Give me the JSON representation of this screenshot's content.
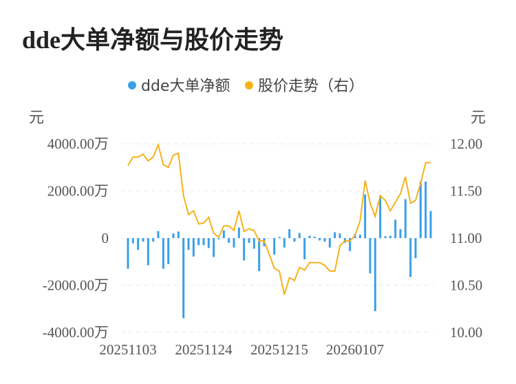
{
  "chart_data": {
    "type": "bar+line",
    "title": "dde大单净额与股价走势",
    "legend": [
      "dde大单净额",
      "股价走势（右）"
    ],
    "colors": {
      "bar": "#3a9fe8",
      "line": "#f3b21a"
    },
    "left_unit": "元",
    "right_unit": "元",
    "left_ticks": [
      "4000.00万",
      "2000.00万",
      "0",
      "-2000.00万",
      "-4000.00万"
    ],
    "right_ticks": [
      "12.00",
      "11.50",
      "11.00",
      "10.50",
      "10.00"
    ],
    "y_left_range": [
      -4000,
      4000
    ],
    "y_right_range": [
      10.0,
      12.0
    ],
    "x_tick_labels": [
      "20251103",
      "20251124",
      "20251215",
      "20260107"
    ],
    "x_tick_index": [
      0,
      15,
      30,
      45
    ],
    "series": [
      {
        "name": "dde大单净额",
        "axis": "left",
        "unit": "万",
        "values": [
          -1300,
          -220,
          -500,
          -150,
          -1150,
          -150,
          300,
          -1300,
          -1100,
          200,
          280,
          -3400,
          -500,
          -780,
          -300,
          -300,
          -420,
          -800,
          -50,
          330,
          -200,
          -400,
          450,
          -950,
          -200,
          -450,
          -1400,
          -350,
          -10,
          -700,
          50,
          -400,
          380,
          -150,
          220,
          -900,
          100,
          60,
          -100,
          -150,
          -400,
          250,
          200,
          -200,
          -550,
          180,
          150,
          1850,
          -1500,
          -3100,
          1800,
          80,
          100,
          780,
          380,
          1650,
          -1650,
          -850,
          2400,
          2400,
          1150
        ],
        "ser_index_note": ""
      },
      {
        "name": "股价走势（右）",
        "axis": "right",
        "values": [
          11.77,
          11.86,
          11.86,
          11.89,
          11.82,
          11.86,
          11.99,
          11.78,
          11.75,
          11.88,
          11.9,
          11.45,
          11.25,
          11.29,
          11.15,
          11.16,
          11.22,
          11.05,
          11.01,
          11.13,
          11.13,
          11.08,
          11.29,
          11.07,
          11.1,
          11.08,
          10.97,
          10.97,
          10.83,
          10.68,
          10.65,
          10.4,
          10.58,
          10.55,
          10.69,
          10.66,
          10.74,
          10.74,
          10.74,
          10.71,
          10.65,
          10.65,
          10.92,
          10.97,
          10.97,
          11.03,
          11.18,
          11.61,
          11.37,
          11.23,
          11.45,
          11.4,
          11.29,
          11.38,
          11.47,
          11.65,
          11.37,
          11.4,
          11.58,
          11.8,
          11.8
        ]
      }
    ]
  }
}
